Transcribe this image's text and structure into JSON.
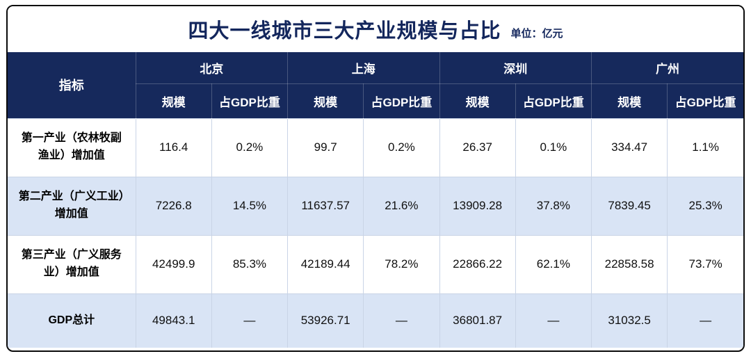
{
  "chart_data": {
    "type": "table",
    "title": "四大一线城市三大产业规模与占比",
    "unit_label": "单位：亿元",
    "indicator_header": "指标",
    "cities": [
      "北京",
      "上海",
      "深圳",
      "广州"
    ],
    "sub_headers": [
      "规模",
      "占GDP比重"
    ],
    "rows": [
      {
        "indicator": "第一产业（农林牧副渔业）增加值",
        "cells": [
          "116.4",
          "0.2%",
          "99.7",
          "0.2%",
          "26.37",
          "0.1%",
          "334.47",
          "1.1%"
        ]
      },
      {
        "indicator": "第二产业（广义工业）增加值",
        "cells": [
          "7226.8",
          "14.5%",
          "11637.57",
          "21.6%",
          "13909.28",
          "37.8%",
          "7839.45",
          "25.3%"
        ]
      },
      {
        "indicator": "第三产业（广义服务业）增加值",
        "cells": [
          "42499.9",
          "85.3%",
          "42189.44",
          "78.2%",
          "22866.22",
          "62.1%",
          "22858.58",
          "73.7%"
        ]
      },
      {
        "indicator": "GDP总计",
        "cells": [
          "49843.1",
          "—",
          "53926.71",
          "—",
          "36801.87",
          "—",
          "31032.5",
          "—"
        ]
      }
    ]
  },
  "colors": {
    "header_bg": "#16295c",
    "alt_row_bg": "#d9e4f5",
    "title_color": "#13265c",
    "frame_border": "#0a0a0a"
  }
}
